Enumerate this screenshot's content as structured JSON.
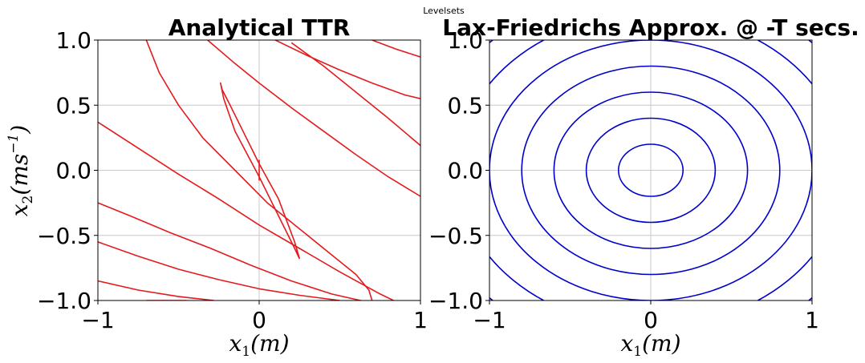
{
  "figure": {
    "suptitle": "Levelsets"
  },
  "chart_data": [
    {
      "type": "line",
      "title": "Analytical TTR",
      "xlabel": "x1(m)",
      "ylabel": "x2(ms-1)",
      "xlim": [
        -1,
        1
      ],
      "ylim": [
        -1,
        1
      ],
      "xticks": [
        "−1",
        "0",
        "1"
      ],
      "yticks": [
        "−1.0",
        "−0.5",
        "0.0",
        "0.5",
        "1.0"
      ],
      "grid": true,
      "line_color": "#e41a1c",
      "series": [
        {
          "x": [
            0.0,
            0.0
          ],
          "y": [
            -0.08,
            0.08
          ]
        },
        {
          "x": [
            0.25,
            0.22,
            0.12,
            0.0,
            -0.1,
            -0.18,
            -0.23,
            -0.24,
            -0.22,
            -0.15,
            0.0,
            0.12,
            0.22,
            0.25
          ],
          "y": [
            -0.68,
            -0.55,
            -0.22,
            0.05,
            0.3,
            0.5,
            0.62,
            0.67,
            0.55,
            0.3,
            -0.05,
            -0.35,
            -0.6,
            -0.68
          ]
        },
        {
          "x": [
            -0.7,
            -0.62,
            -0.5,
            -0.35,
            -0.15,
            0.05,
            0.25,
            0.45,
            0.6,
            0.68,
            0.7
          ],
          "y": [
            1.0,
            0.75,
            0.5,
            0.25,
            0.0,
            -0.25,
            -0.45,
            -0.65,
            -0.8,
            -0.92,
            -1.0
          ]
        },
        {
          "x": [
            -1.0,
            -0.8,
            -0.55,
            -0.3,
            -0.05,
            0.2,
            0.45,
            0.7,
            0.95,
            1.0
          ],
          "y": [
            -0.25,
            -0.35,
            -0.48,
            -0.6,
            -0.73,
            -0.85,
            -0.95,
            -1.02,
            -1.05,
            -1.05
          ]
        },
        {
          "x": [
            -1.0,
            -0.75,
            -0.5,
            -0.25,
            0.0,
            0.25,
            0.5,
            0.75,
            1.0
          ],
          "y": [
            0.37,
            0.17,
            -0.03,
            -0.22,
            -0.42,
            -0.6,
            -0.78,
            -0.95,
            -1.1
          ]
        },
        {
          "x": [
            -0.32,
            -0.15,
            0.0,
            0.2,
            0.4,
            0.6,
            0.8,
            1.0
          ],
          "y": [
            1.0,
            0.82,
            0.67,
            0.48,
            0.3,
            0.12,
            -0.05,
            -0.2
          ]
        },
        {
          "x": [
            0.1,
            0.3,
            0.5,
            0.7,
            0.9,
            1.0
          ],
          "y": [
            1.0,
            0.88,
            0.77,
            0.67,
            0.58,
            0.55
          ]
        },
        {
          "x": [
            0.7,
            0.85,
            1.0
          ],
          "y": [
            1.0,
            0.93,
            0.87
          ]
        },
        {
          "x": [
            0.2,
            0.4,
            0.6,
            0.8,
            1.0
          ],
          "y": [
            0.98,
            0.8,
            0.6,
            0.4,
            0.19
          ]
        },
        {
          "x": [
            -1.0,
            -0.75,
            -0.5,
            -0.25,
            0.0,
            0.25,
            0.5
          ],
          "y": [
            -0.55,
            -0.66,
            -0.76,
            -0.84,
            -0.91,
            -0.96,
            -1.0
          ]
        },
        {
          "x": [
            -1.0,
            -0.75,
            -0.5,
            -0.28
          ],
          "y": [
            -0.85,
            -0.92,
            -0.97,
            -1.0
          ]
        },
        {
          "x": [
            -0.7,
            -0.45
          ],
          "y": [
            -1.0,
            -1.0
          ]
        }
      ]
    },
    {
      "type": "line",
      "title": "Lax-Friedrichs Approx. @ -T secs.",
      "xlabel": "x1(m)",
      "ylabel": "",
      "xlim": [
        -1,
        1
      ],
      "ylim": [
        -1,
        1
      ],
      "xticks": [
        "−1",
        "0",
        "1"
      ],
      "yticks": [
        "−1.0",
        "−0.5",
        "0.0",
        "0.5",
        "1.0"
      ],
      "grid": true,
      "line_color": "#0000cc",
      "contour_radii": [
        0.2,
        0.4,
        0.6,
        0.8,
        1.0,
        1.2,
        1.4
      ]
    }
  ]
}
